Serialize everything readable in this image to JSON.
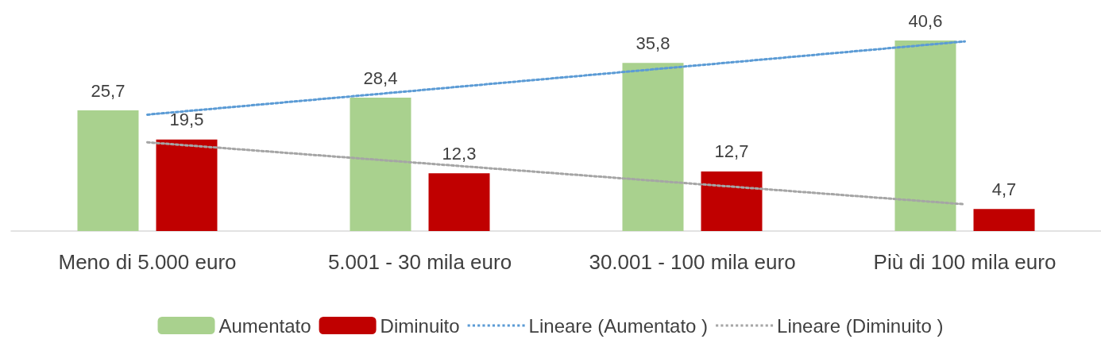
{
  "chart_data": {
    "type": "bar",
    "categories": [
      "Meno di 5.000 euro",
      "5.001 - 30 mila euro",
      "30.001 - 100 mila euro",
      "Più di 100 mila euro"
    ],
    "series": [
      {
        "name": "Aumentato",
        "color": "#a9d18e",
        "values": [
          25.7,
          28.4,
          35.8,
          40.6
        ],
        "value_labels": [
          "25,7",
          "28,4",
          "35,8",
          "40,6"
        ]
      },
      {
        "name": "Diminuito",
        "color": "#c00000",
        "values": [
          19.5,
          12.3,
          12.7,
          4.7
        ],
        "value_labels": [
          "19,5",
          "12,3",
          "12,7",
          "4,7"
        ]
      },
      {
        "name": "Lineare (Aumentato )",
        "type": "line",
        "color": "#5b9bd5",
        "line_style": "dotted",
        "marker": "none",
        "values": [
          24.8,
          30.0,
          35.2,
          40.4
        ]
      },
      {
        "name": "Lineare (Diminuito )",
        "type": "line",
        "color": "#a5a5a5",
        "line_style": "dotted",
        "marker": "none",
        "values": [
          18.9,
          14.5,
          10.1,
          5.7
        ]
      }
    ],
    "grid": false,
    "legend": "bottom"
  }
}
